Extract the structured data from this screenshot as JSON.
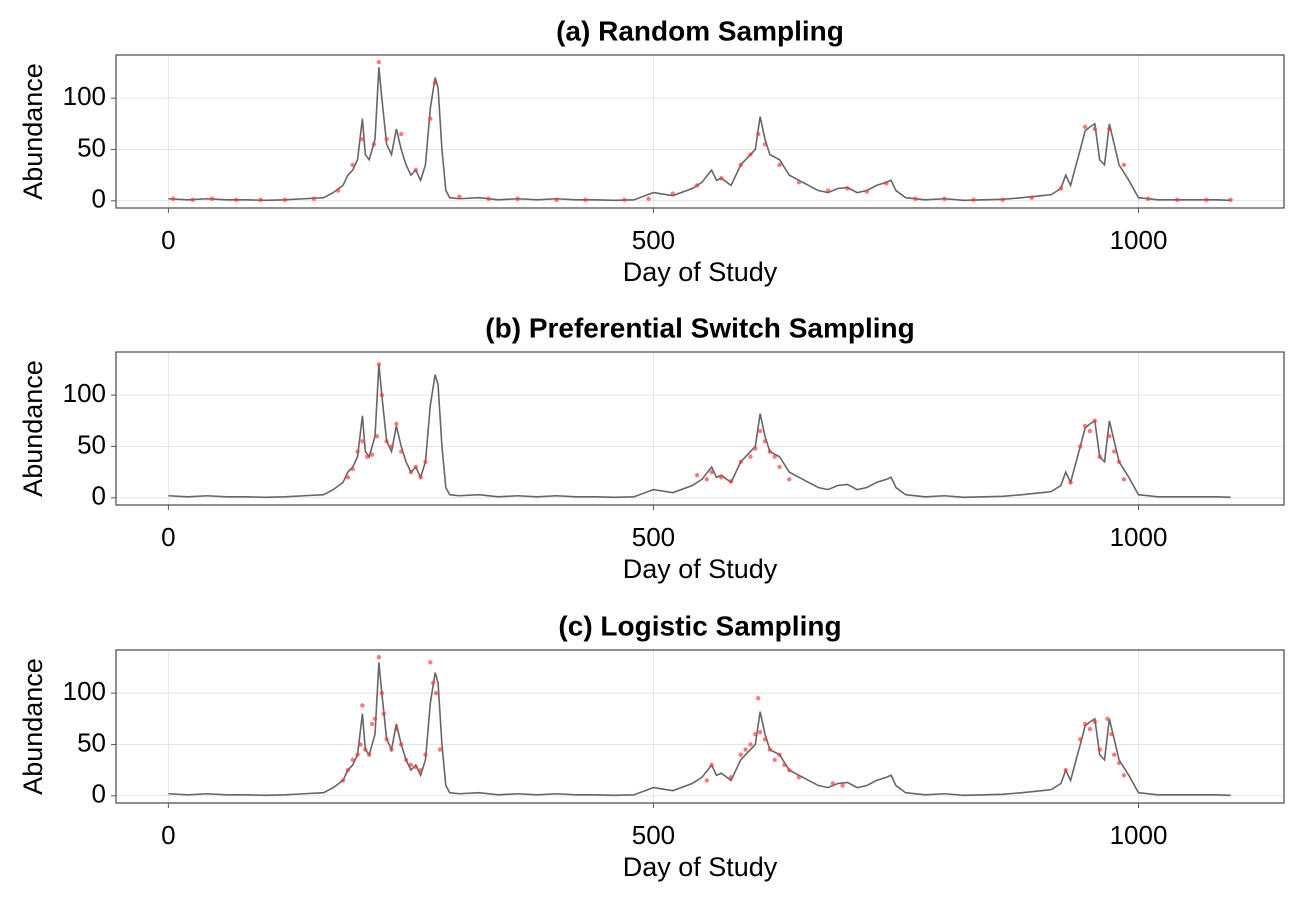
{
  "chart_data": [
    {
      "type": "line",
      "title": "(a) Random Sampling",
      "x_label": "Day of Study",
      "y_label": "Abundance",
      "xlim": [
        -54,
        1150
      ],
      "ylim": [
        -7,
        142
      ],
      "xticks": [
        0,
        500,
        1000
      ],
      "yticks": [
        0,
        50,
        100
      ],
      "grid": true,
      "series": [
        {
          "type": "line",
          "color": "#666666",
          "x": [
            0,
            20,
            40,
            60,
            80,
            100,
            120,
            140,
            160,
            170,
            180,
            185,
            190,
            195,
            200,
            203,
            207,
            213,
            217,
            220,
            225,
            230,
            235,
            240,
            245,
            250,
            255,
            260,
            265,
            270,
            275,
            278,
            282,
            286,
            290,
            300,
            320,
            340,
            360,
            380,
            400,
            420,
            440,
            460,
            480,
            500,
            520,
            540,
            550,
            560,
            565,
            570,
            580,
            590,
            600,
            605,
            610,
            615,
            620,
            630,
            640,
            650,
            660,
            670,
            680,
            690,
            700,
            710,
            720,
            730,
            740,
            745,
            750,
            760,
            780,
            800,
            820,
            840,
            860,
            880,
            900,
            910,
            920,
            925,
            930,
            940,
            945,
            950,
            955,
            960,
            965,
            970,
            975,
            980,
            990,
            1000,
            1020,
            1040,
            1060,
            1080,
            1095
          ],
          "values": [
            2,
            1,
            2,
            1,
            1,
            0.5,
            1,
            2,
            3,
            8,
            15,
            25,
            30,
            40,
            80,
            45,
            40,
            60,
            130,
            100,
            55,
            45,
            70,
            50,
            35,
            25,
            30,
            20,
            35,
            90,
            120,
            110,
            50,
            10,
            3,
            2,
            3,
            1,
            2,
            1,
            2,
            1,
            1,
            0.5,
            1,
            8,
            5,
            12,
            18,
            30,
            20,
            22,
            15,
            35,
            45,
            50,
            82,
            60,
            45,
            40,
            25,
            20,
            15,
            10,
            8,
            12,
            13,
            8,
            10,
            15,
            18,
            20,
            10,
            3,
            1,
            2,
            0.5,
            1,
            1.5,
            3,
            5,
            6,
            12,
            25,
            15,
            50,
            68,
            72,
            75,
            40,
            35,
            75,
            55,
            35,
            20,
            3,
            1,
            1,
            1,
            1,
            0.5
          ]
        },
        {
          "type": "scatter",
          "color": "#ff3333",
          "x": [
            5,
            25,
            45,
            70,
            95,
            120,
            150,
            175,
            190,
            200,
            212,
            217,
            225,
            240,
            255,
            270,
            275,
            300,
            330,
            360,
            400,
            430,
            470,
            495,
            520,
            545,
            570,
            590,
            600,
            608,
            615,
            630,
            650,
            680,
            700,
            720,
            740,
            770,
            800,
            830,
            860,
            890,
            920,
            945,
            955,
            970,
            985,
            1010,
            1040,
            1070,
            1095
          ],
          "values": [
            2,
            1,
            2,
            1,
            1,
            1,
            2,
            10,
            35,
            60,
            55,
            135,
            60,
            65,
            30,
            80,
            115,
            4,
            2,
            2,
            1,
            1,
            1,
            2,
            7,
            15,
            22,
            35,
            45,
            65,
            55,
            35,
            18,
            10,
            12,
            9,
            17,
            2,
            2,
            1,
            1,
            3,
            12,
            72,
            70,
            70,
            35,
            2,
            1,
            1,
            1
          ]
        }
      ]
    },
    {
      "type": "line",
      "title": "(b) Preferential Switch Sampling",
      "x_label": "Day of Study",
      "y_label": "Abundance",
      "xlim": [
        -54,
        1150
      ],
      "ylim": [
        -7,
        142
      ],
      "xticks": [
        0,
        500,
        1000
      ],
      "yticks": [
        0,
        50,
        100
      ],
      "grid": true,
      "series": [
        {
          "type": "line",
          "color": "#666666",
          "x": [
            0,
            20,
            40,
            60,
            80,
            100,
            120,
            140,
            160,
            170,
            180,
            185,
            190,
            195,
            200,
            203,
            207,
            213,
            217,
            220,
            225,
            230,
            235,
            240,
            245,
            250,
            255,
            260,
            265,
            270,
            275,
            278,
            282,
            286,
            290,
            300,
            320,
            340,
            360,
            380,
            400,
            420,
            440,
            460,
            480,
            500,
            520,
            540,
            550,
            560,
            565,
            570,
            580,
            590,
            600,
            605,
            610,
            615,
            620,
            630,
            640,
            650,
            660,
            670,
            680,
            690,
            700,
            710,
            720,
            730,
            740,
            745,
            750,
            760,
            780,
            800,
            820,
            840,
            860,
            880,
            900,
            910,
            920,
            925,
            930,
            940,
            945,
            950,
            955,
            960,
            965,
            970,
            975,
            980,
            990,
            1000,
            1020,
            1040,
            1060,
            1080,
            1095
          ],
          "values": [
            2,
            1,
            2,
            1,
            1,
            0.5,
            1,
            2,
            3,
            8,
            15,
            25,
            30,
            40,
            80,
            45,
            40,
            60,
            130,
            100,
            55,
            45,
            70,
            50,
            35,
            25,
            30,
            20,
            35,
            90,
            120,
            110,
            50,
            10,
            3,
            2,
            3,
            1,
            2,
            1,
            2,
            1,
            1,
            0.5,
            1,
            8,
            5,
            12,
            18,
            30,
            20,
            22,
            15,
            35,
            45,
            50,
            82,
            60,
            45,
            40,
            25,
            20,
            15,
            10,
            8,
            12,
            13,
            8,
            10,
            15,
            18,
            20,
            10,
            3,
            1,
            2,
            0.5,
            1,
            1.5,
            3,
            5,
            6,
            12,
            25,
            15,
            50,
            68,
            72,
            75,
            40,
            35,
            75,
            55,
            35,
            20,
            3,
            1,
            1,
            1,
            1,
            0.5
          ]
        },
        {
          "type": "scatter",
          "color": "#ff3333",
          "x": [
            185,
            190,
            195,
            200,
            205,
            210,
            215,
            217,
            220,
            225,
            230,
            235,
            240,
            250,
            255,
            260,
            265,
            545,
            555,
            560,
            570,
            580,
            590,
            600,
            605,
            610,
            615,
            620,
            625,
            630,
            640,
            930,
            940,
            945,
            950,
            955,
            960,
            970,
            975,
            980,
            985
          ],
          "values": [
            20,
            28,
            45,
            55,
            40,
            42,
            60,
            130,
            100,
            55,
            50,
            72,
            45,
            25,
            30,
            20,
            35,
            22,
            18,
            25,
            20,
            16,
            35,
            40,
            48,
            65,
            55,
            45,
            40,
            30,
            18,
            15,
            50,
            70,
            65,
            75,
            40,
            60,
            45,
            35,
            18
          ]
        }
      ]
    },
    {
      "type": "line",
      "title": "(c) Logistic Sampling",
      "x_label": "Day of Study",
      "y_label": "Abundance",
      "xlim": [
        -54,
        1150
      ],
      "ylim": [
        -7,
        142
      ],
      "xticks": [
        0,
        500,
        1000
      ],
      "yticks": [
        0,
        50,
        100
      ],
      "grid": true,
      "series": [
        {
          "type": "line",
          "color": "#666666",
          "x": [
            0,
            20,
            40,
            60,
            80,
            100,
            120,
            140,
            160,
            170,
            180,
            185,
            190,
            195,
            200,
            203,
            207,
            213,
            217,
            220,
            225,
            230,
            235,
            240,
            245,
            250,
            255,
            260,
            265,
            270,
            275,
            278,
            282,
            286,
            290,
            300,
            320,
            340,
            360,
            380,
            400,
            420,
            440,
            460,
            480,
            500,
            520,
            540,
            550,
            560,
            565,
            570,
            580,
            590,
            600,
            605,
            610,
            615,
            620,
            630,
            640,
            650,
            660,
            670,
            680,
            690,
            700,
            710,
            720,
            730,
            740,
            745,
            750,
            760,
            780,
            800,
            820,
            840,
            860,
            880,
            900,
            910,
            920,
            925,
            930,
            940,
            945,
            950,
            955,
            960,
            965,
            970,
            975,
            980,
            990,
            1000,
            1020,
            1040,
            1060,
            1080,
            1095
          ],
          "values": [
            2,
            1,
            2,
            1,
            1,
            0.5,
            1,
            2,
            3,
            8,
            15,
            25,
            30,
            40,
            80,
            45,
            40,
            60,
            130,
            100,
            55,
            45,
            70,
            50,
            35,
            25,
            30,
            20,
            35,
            90,
            120,
            110,
            50,
            10,
            3,
            2,
            3,
            1,
            2,
            1,
            2,
            1,
            1,
            0.5,
            1,
            8,
            5,
            12,
            18,
            30,
            20,
            22,
            15,
            35,
            45,
            50,
            82,
            60,
            45,
            40,
            25,
            20,
            15,
            10,
            8,
            12,
            13,
            8,
            10,
            15,
            18,
            20,
            10,
            3,
            1,
            2,
            0.5,
            1,
            1.5,
            3,
            5,
            6,
            12,
            25,
            15,
            50,
            68,
            72,
            75,
            40,
            35,
            75,
            55,
            35,
            20,
            3,
            1,
            1,
            1,
            1,
            0.5
          ]
        },
        {
          "type": "scatter",
          "color": "#ff3333",
          "x": [
            180,
            185,
            190,
            195,
            198,
            200,
            203,
            207,
            210,
            213,
            217,
            220,
            222,
            225,
            230,
            235,
            240,
            245,
            250,
            255,
            260,
            265,
            270,
            273,
            276,
            280,
            555,
            560,
            580,
            590,
            595,
            600,
            605,
            608,
            610,
            615,
            620,
            625,
            630,
            635,
            640,
            650,
            685,
            695,
            925,
            940,
            945,
            950,
            955,
            960,
            968,
            972,
            975,
            980,
            985
          ],
          "values": [
            15,
            25,
            35,
            40,
            50,
            88,
            45,
            40,
            70,
            75,
            135,
            100,
            80,
            55,
            45,
            65,
            50,
            35,
            30,
            28,
            25,
            40,
            130,
            110,
            100,
            45,
            15,
            30,
            18,
            40,
            45,
            50,
            60,
            95,
            62,
            55,
            45,
            35,
            40,
            30,
            25,
            18,
            12,
            10,
            25,
            55,
            70,
            65,
            72,
            45,
            75,
            60,
            40,
            32,
            20
          ]
        }
      ]
    }
  ]
}
